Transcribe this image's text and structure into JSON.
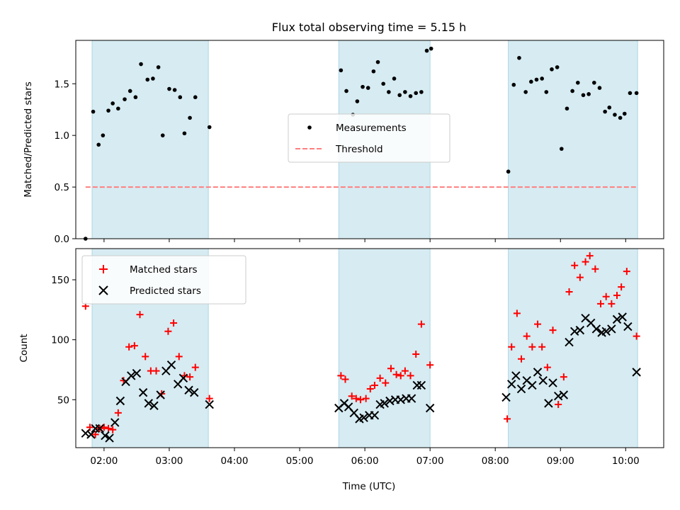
{
  "figure": {
    "title": "Flux total observing time = 5.15 h",
    "xlabel": "Time (UTC)"
  },
  "colors": {
    "band": "#add8e6",
    "threshold": "#ff7f7f",
    "matched": "#ff0000",
    "predicted": "#000000",
    "measurement": "#000000"
  },
  "chart_data": [
    {
      "type": "scatter",
      "ylabel": "Matched/Predicted stars",
      "xlim": [
        "01:34",
        "10:35"
      ],
      "ylim": [
        0,
        1.92
      ],
      "grid": false,
      "legend_location": "center",
      "yticks": [
        {
          "value": 0.0,
          "label": "0.0"
        },
        {
          "value": 0.5,
          "label": "0.5"
        },
        {
          "value": 1.0,
          "label": "1.0"
        },
        {
          "value": 1.5,
          "label": "1.5"
        }
      ],
      "observing_windows": [
        [
          "01:49",
          "03:36"
        ],
        [
          "05:36",
          "07:00"
        ],
        [
          "08:12",
          "10:11"
        ]
      ],
      "series": [
        {
          "name": "Measurements",
          "marker": "dot",
          "points": [
            [
              "01:43",
              0.0
            ],
            [
              "01:50",
              1.23
            ],
            [
              "01:55",
              0.91
            ],
            [
              "01:59",
              1.0
            ],
            [
              "02:04",
              1.24
            ],
            [
              "02:08",
              1.31
            ],
            [
              "02:13",
              1.26
            ],
            [
              "02:19",
              1.35
            ],
            [
              "02:24",
              1.43
            ],
            [
              "02:29",
              1.37
            ],
            [
              "02:34",
              1.69
            ],
            [
              "02:40",
              1.54
            ],
            [
              "02:45",
              1.55
            ],
            [
              "02:50",
              1.66
            ],
            [
              "02:54",
              1.0
            ],
            [
              "03:00",
              1.45
            ],
            [
              "03:05",
              1.44
            ],
            [
              "03:10",
              1.37
            ],
            [
              "03:14",
              1.02
            ],
            [
              "03:19",
              1.17
            ],
            [
              "03:24",
              1.37
            ],
            [
              "03:37",
              1.08
            ],
            [
              "05:38",
              1.63
            ],
            [
              "05:43",
              1.43
            ],
            [
              "05:49",
              1.2
            ],
            [
              "05:53",
              1.33
            ],
            [
              "05:58",
              1.47
            ],
            [
              "06:03",
              1.46
            ],
            [
              "06:08",
              1.62
            ],
            [
              "06:12",
              1.71
            ],
            [
              "06:17",
              1.5
            ],
            [
              "06:22",
              1.42
            ],
            [
              "06:27",
              1.55
            ],
            [
              "06:32",
              1.39
            ],
            [
              "06:37",
              1.42
            ],
            [
              "06:42",
              1.38
            ],
            [
              "06:47",
              1.41
            ],
            [
              "06:52",
              1.42
            ],
            [
              "06:57",
              1.82
            ],
            [
              "07:01",
              1.84
            ],
            [
              "08:12",
              0.65
            ],
            [
              "08:17",
              1.49
            ],
            [
              "08:22",
              1.75
            ],
            [
              "08:28",
              1.42
            ],
            [
              "08:33",
              1.52
            ],
            [
              "08:38",
              1.54
            ],
            [
              "08:43",
              1.55
            ],
            [
              "08:47",
              1.42
            ],
            [
              "08:52",
              1.64
            ],
            [
              "08:57",
              1.66
            ],
            [
              "09:01",
              0.87
            ],
            [
              "09:06",
              1.26
            ],
            [
              "09:11",
              1.43
            ],
            [
              "09:16",
              1.51
            ],
            [
              "09:21",
              1.39
            ],
            [
              "09:26",
              1.4
            ],
            [
              "09:31",
              1.51
            ],
            [
              "09:36",
              1.46
            ],
            [
              "09:41",
              1.23
            ],
            [
              "09:45",
              1.27
            ],
            [
              "09:50",
              1.2
            ],
            [
              "09:55",
              1.17
            ],
            [
              "09:59",
              1.21
            ],
            [
              "10:04",
              1.41
            ],
            [
              "10:10",
              1.41
            ]
          ]
        },
        {
          "name": "Threshold",
          "style": "dashed",
          "points": [
            [
              "01:43",
              0.5
            ],
            [
              "10:10",
              0.5
            ]
          ]
        }
      ]
    },
    {
      "type": "scatter",
      "ylabel": "Count",
      "xlim": [
        "01:34",
        "10:35"
      ],
      "ylim": [
        10,
        176
      ],
      "grid": false,
      "legend_location": "upper left",
      "yticks": [
        {
          "value": 50,
          "label": "50"
        },
        {
          "value": 100,
          "label": "100"
        },
        {
          "value": 150,
          "label": "150"
        }
      ],
      "xticks": [
        {
          "value": "02:00",
          "label": "02:00"
        },
        {
          "value": "03:00",
          "label": "03:00"
        },
        {
          "value": "04:00",
          "label": "04:00"
        },
        {
          "value": "05:00",
          "label": "05:00"
        },
        {
          "value": "06:00",
          "label": "06:00"
        },
        {
          "value": "07:00",
          "label": "07:00"
        },
        {
          "value": "08:00",
          "label": "08:00"
        },
        {
          "value": "09:00",
          "label": "09:00"
        },
        {
          "value": "10:00",
          "label": "10:00"
        }
      ],
      "observing_windows": [
        [
          "01:49",
          "03:36"
        ],
        [
          "05:36",
          "07:00"
        ],
        [
          "08:12",
          "10:11"
        ]
      ],
      "series": [
        {
          "name": "Matched stars",
          "marker": "plus",
          "points": [
            [
              "01:43",
              128
            ],
            [
              "01:47",
              27
            ],
            [
              "01:52",
              21
            ],
            [
              "01:56",
              26
            ],
            [
              "02:00",
              27
            ],
            [
              "02:04",
              26
            ],
            [
              "02:08",
              25
            ],
            [
              "02:13",
              39
            ],
            [
              "02:18",
              66
            ],
            [
              "02:23",
              94
            ],
            [
              "02:28",
              95
            ],
            [
              "02:33",
              121
            ],
            [
              "02:38",
              86
            ],
            [
              "02:43",
              74
            ],
            [
              "02:48",
              74
            ],
            [
              "02:53",
              55
            ],
            [
              "02:59",
              107
            ],
            [
              "03:04",
              114
            ],
            [
              "03:09",
              86
            ],
            [
              "03:14",
              70
            ],
            [
              "03:19",
              69
            ],
            [
              "03:24",
              77
            ],
            [
              "03:37",
              51
            ],
            [
              "05:38",
              70
            ],
            [
              "05:42",
              67
            ],
            [
              "05:48",
              53
            ],
            [
              "05:52",
              51
            ],
            [
              "05:56",
              50
            ],
            [
              "06:01",
              51
            ],
            [
              "06:05",
              59
            ],
            [
              "06:09",
              62
            ],
            [
              "06:14",
              68
            ],
            [
              "06:19",
              64
            ],
            [
              "06:24",
              76
            ],
            [
              "06:29",
              71
            ],
            [
              "06:33",
              70
            ],
            [
              "06:37",
              74
            ],
            [
              "06:42",
              70
            ],
            [
              "06:47",
              88
            ],
            [
              "06:52",
              113
            ],
            [
              "07:00",
              79
            ],
            [
              "08:11",
              34
            ],
            [
              "08:15",
              94
            ],
            [
              "08:20",
              122
            ],
            [
              "08:24",
              84
            ],
            [
              "08:29",
              103
            ],
            [
              "08:34",
              94
            ],
            [
              "08:39",
              113
            ],
            [
              "08:43",
              94
            ],
            [
              "08:48",
              77
            ],
            [
              "08:53",
              108
            ],
            [
              "08:58",
              46
            ],
            [
              "09:03",
              69
            ],
            [
              "09:08",
              140
            ],
            [
              "09:13",
              162
            ],
            [
              "09:18",
              152
            ],
            [
              "09:23",
              165
            ],
            [
              "09:27",
              170
            ],
            [
              "09:32",
              159
            ],
            [
              "09:37",
              130
            ],
            [
              "09:42",
              136
            ],
            [
              "09:47",
              130
            ],
            [
              "09:52",
              137
            ],
            [
              "09:56",
              144
            ],
            [
              "10:01",
              157
            ],
            [
              "10:10",
              103
            ]
          ]
        },
        {
          "name": "Predicted stars",
          "marker": "x",
          "points": [
            [
              "01:43",
              22
            ],
            [
              "01:48",
              21
            ],
            [
              "01:52",
              26
            ],
            [
              "01:56",
              26
            ],
            [
              "02:01",
              20
            ],
            [
              "02:05",
              18
            ],
            [
              "02:10",
              31
            ],
            [
              "02:15",
              49
            ],
            [
              "02:20",
              65
            ],
            [
              "02:25",
              70
            ],
            [
              "02:30",
              72
            ],
            [
              "02:36",
              56
            ],
            [
              "02:41",
              47
            ],
            [
              "02:46",
              45
            ],
            [
              "02:52",
              54
            ],
            [
              "02:57",
              74
            ],
            [
              "03:02",
              79
            ],
            [
              "03:08",
              63
            ],
            [
              "03:13",
              68
            ],
            [
              "03:18",
              58
            ],
            [
              "03:23",
              56
            ],
            [
              "03:37",
              46
            ],
            [
              "05:36",
              43
            ],
            [
              "05:41",
              47
            ],
            [
              "05:45",
              44
            ],
            [
              "05:50",
              39
            ],
            [
              "05:55",
              34
            ],
            [
              "05:59",
              35
            ],
            [
              "06:04",
              37
            ],
            [
              "06:09",
              37
            ],
            [
              "06:14",
              46
            ],
            [
              "06:18",
              47
            ],
            [
              "06:23",
              49
            ],
            [
              "06:28",
              50
            ],
            [
              "06:33",
              50
            ],
            [
              "06:38",
              51
            ],
            [
              "06:43",
              51
            ],
            [
              "06:48",
              62
            ],
            [
              "06:52",
              62
            ],
            [
              "07:00",
              43
            ],
            [
              "08:10",
              52
            ],
            [
              "08:15",
              63
            ],
            [
              "08:19",
              70
            ],
            [
              "08:24",
              59
            ],
            [
              "08:29",
              66
            ],
            [
              "08:34",
              62
            ],
            [
              "08:39",
              73
            ],
            [
              "08:44",
              66
            ],
            [
              "08:49",
              47
            ],
            [
              "08:53",
              64
            ],
            [
              "08:58",
              53
            ],
            [
              "09:03",
              54
            ],
            [
              "09:08",
              98
            ],
            [
              "09:13",
              107
            ],
            [
              "09:18",
              108
            ],
            [
              "09:23",
              118
            ],
            [
              "09:28",
              114
            ],
            [
              "09:33",
              109
            ],
            [
              "09:38",
              106
            ],
            [
              "09:42",
              107
            ],
            [
              "09:47",
              109
            ],
            [
              "09:52",
              117
            ],
            [
              "09:57",
              119
            ],
            [
              "10:02",
              111
            ],
            [
              "10:10",
              73
            ]
          ]
        }
      ]
    }
  ]
}
